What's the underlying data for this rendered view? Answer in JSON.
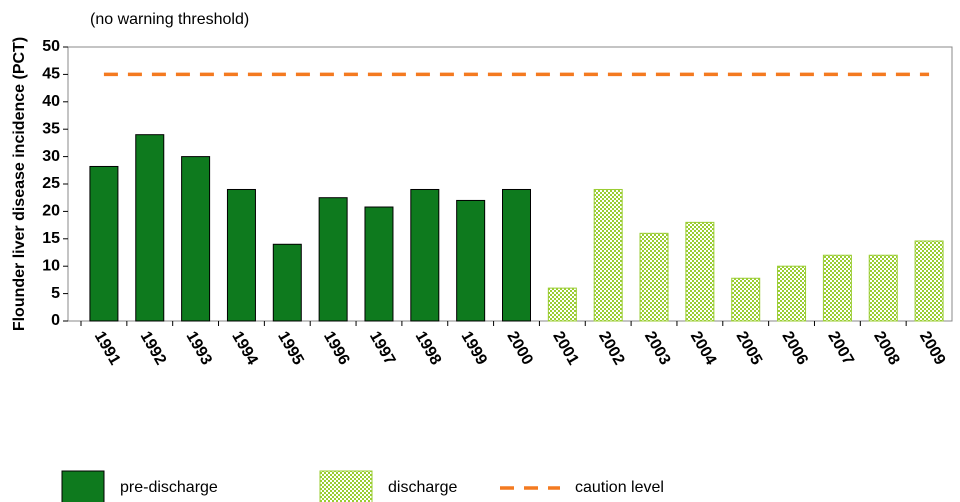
{
  "chart_data": {
    "type": "bar",
    "annotation": "(no warning threshold)",
    "y_label": "Flounder liver disease incidence (PCT)",
    "categories": [
      "1991",
      "1992",
      "1993",
      "1994",
      "1995",
      "1996",
      "1997",
      "1998",
      "1999",
      "2000",
      "2001",
      "2002",
      "2003",
      "2004",
      "2005",
      "2006",
      "2007",
      "2008",
      "2009"
    ],
    "series": [
      {
        "name": "pre-discharge",
        "color": "#0e7a1e",
        "fill": "solid",
        "values": [
          28.2,
          34,
          30,
          24,
          14,
          22.5,
          20.8,
          24,
          22,
          24,
          null,
          null,
          null,
          null,
          null,
          null,
          null,
          null,
          null
        ]
      },
      {
        "name": "discharge",
        "color": "#9acd32",
        "fill": "checkered",
        "values": [
          null,
          null,
          null,
          null,
          null,
          null,
          null,
          null,
          null,
          null,
          6,
          24,
          16,
          18,
          7.8,
          10,
          12,
          12,
          14.6
        ]
      },
      {
        "name": "caution level",
        "color": "#f47a20",
        "style": "dashed",
        "type": "line",
        "values": [
          45,
          45,
          45,
          45,
          45,
          45,
          45,
          45,
          45,
          45,
          45,
          45,
          45,
          45,
          45,
          45,
          45,
          45,
          45
        ]
      }
    ],
    "ylim": [
      0,
      50
    ],
    "yticks": [
      0,
      5,
      10,
      15,
      20,
      25,
      30,
      35,
      40,
      45,
      50
    ],
    "grid": false,
    "legend": "bottom"
  }
}
